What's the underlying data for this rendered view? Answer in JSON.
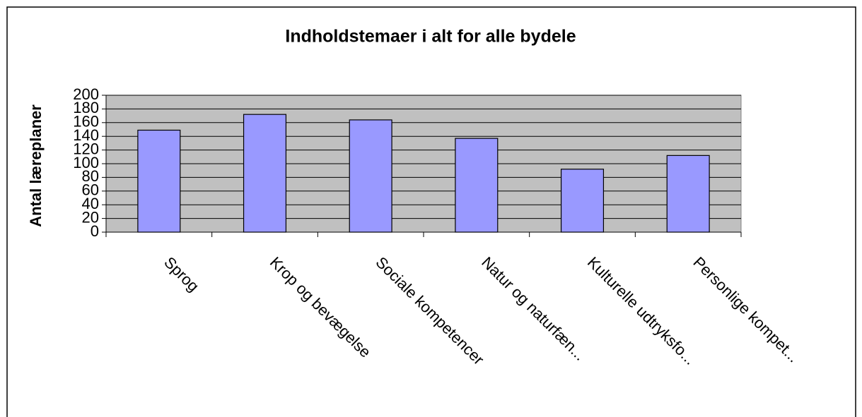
{
  "chart_data": {
    "type": "bar",
    "title": "Indholdstemaer i alt for alle bydele",
    "y_label": "Antal læreplaner",
    "categories": [
      "Sprog",
      "Krop og bevægelse",
      "Sociale kompetencer",
      "Natur og naturfæn...",
      "Kulturelle udtryksfo...",
      "Personlige kompet..."
    ],
    "values": [
      149,
      172,
      164,
      137,
      92,
      112
    ],
    "color": "#9999ff",
    "ylim": [
      0,
      200
    ],
    "yticks": [
      0,
      20,
      40,
      60,
      80,
      100,
      120,
      140,
      160,
      180,
      200
    ],
    "grid": true
  }
}
